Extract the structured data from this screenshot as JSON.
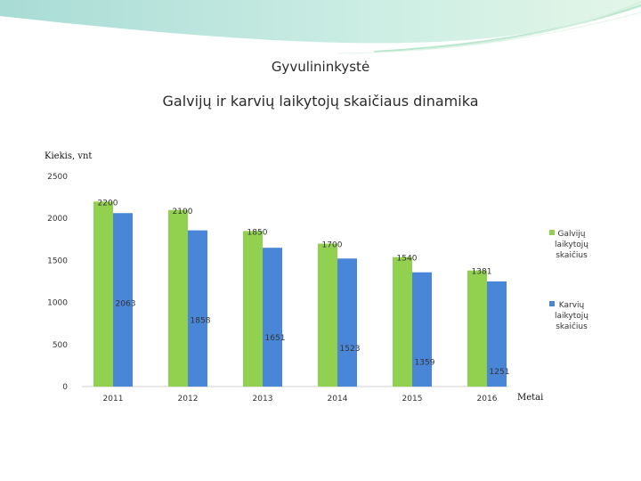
{
  "slide": {
    "title": "Gyvulininkystė"
  },
  "chart_data": {
    "type": "bar",
    "title": "Galvijų ir karvių laikytojų skaičiaus dinamika",
    "ylabel": "Kiekis, vnt",
    "xlabel": "Metai",
    "ylim": [
      0,
      2500
    ],
    "yticks": [
      0,
      500,
      1000,
      1500,
      2000,
      2500
    ],
    "categories": [
      "2011",
      "2012",
      "2013",
      "2014",
      "2015",
      "2016"
    ],
    "series": [
      {
        "name": "Galvijų laikytojų skaičius",
        "legend_lines": [
          "Galvijų",
          "laikytojų",
          "skaičius"
        ],
        "color": "#92D050",
        "values": [
          2200,
          2100,
          1850,
          1700,
          1540,
          1381
        ]
      },
      {
        "name": "Karvių laikytojų skaičius",
        "legend_lines": [
          "Karvių",
          "laikytojų",
          "skaičius"
        ],
        "color": "#4A86D8",
        "values": [
          2063,
          1858,
          1651,
          1523,
          1359,
          1251
        ]
      }
    ],
    "legend_position": "right",
    "grid": false
  }
}
